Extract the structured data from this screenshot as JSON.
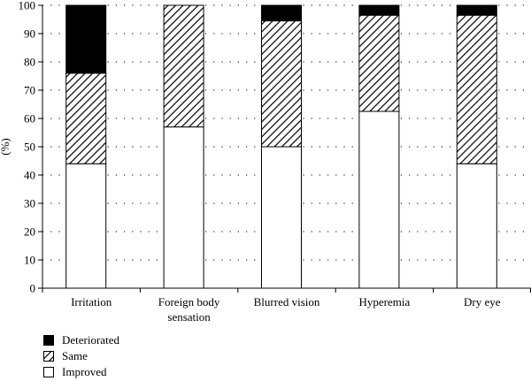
{
  "chart_data": {
    "type": "bar",
    "stacked": true,
    "ylabel": "(%)",
    "ylim": [
      0,
      100
    ],
    "yticks": [
      0,
      10,
      20,
      30,
      40,
      50,
      60,
      70,
      80,
      90,
      100
    ],
    "grid": "dotted horizontal",
    "categories": [
      "Irritation",
      "Foreign body\nsensation",
      "Blurred vision",
      "Hyperemia",
      "Dry eye"
    ],
    "series": [
      {
        "name": "Improved",
        "values": [
          44,
          57,
          50,
          62.5,
          44
        ],
        "color": "#ffffff",
        "pattern": "none"
      },
      {
        "name": "Same",
        "values": [
          32,
          43,
          44.5,
          34,
          52.5
        ],
        "color": "#ffffff",
        "pattern": "diagonal-hatch"
      },
      {
        "name": "Deteriorated",
        "values": [
          24,
          0,
          5.5,
          3.5,
          3.5
        ],
        "color": "#000000",
        "pattern": "solid"
      }
    ],
    "legend_position": "bottom-left"
  },
  "legend": [
    {
      "label": "Deteriorated",
      "series": 2
    },
    {
      "label": "Same",
      "series": 1
    },
    {
      "label": "Improved",
      "series": 0
    }
  ]
}
